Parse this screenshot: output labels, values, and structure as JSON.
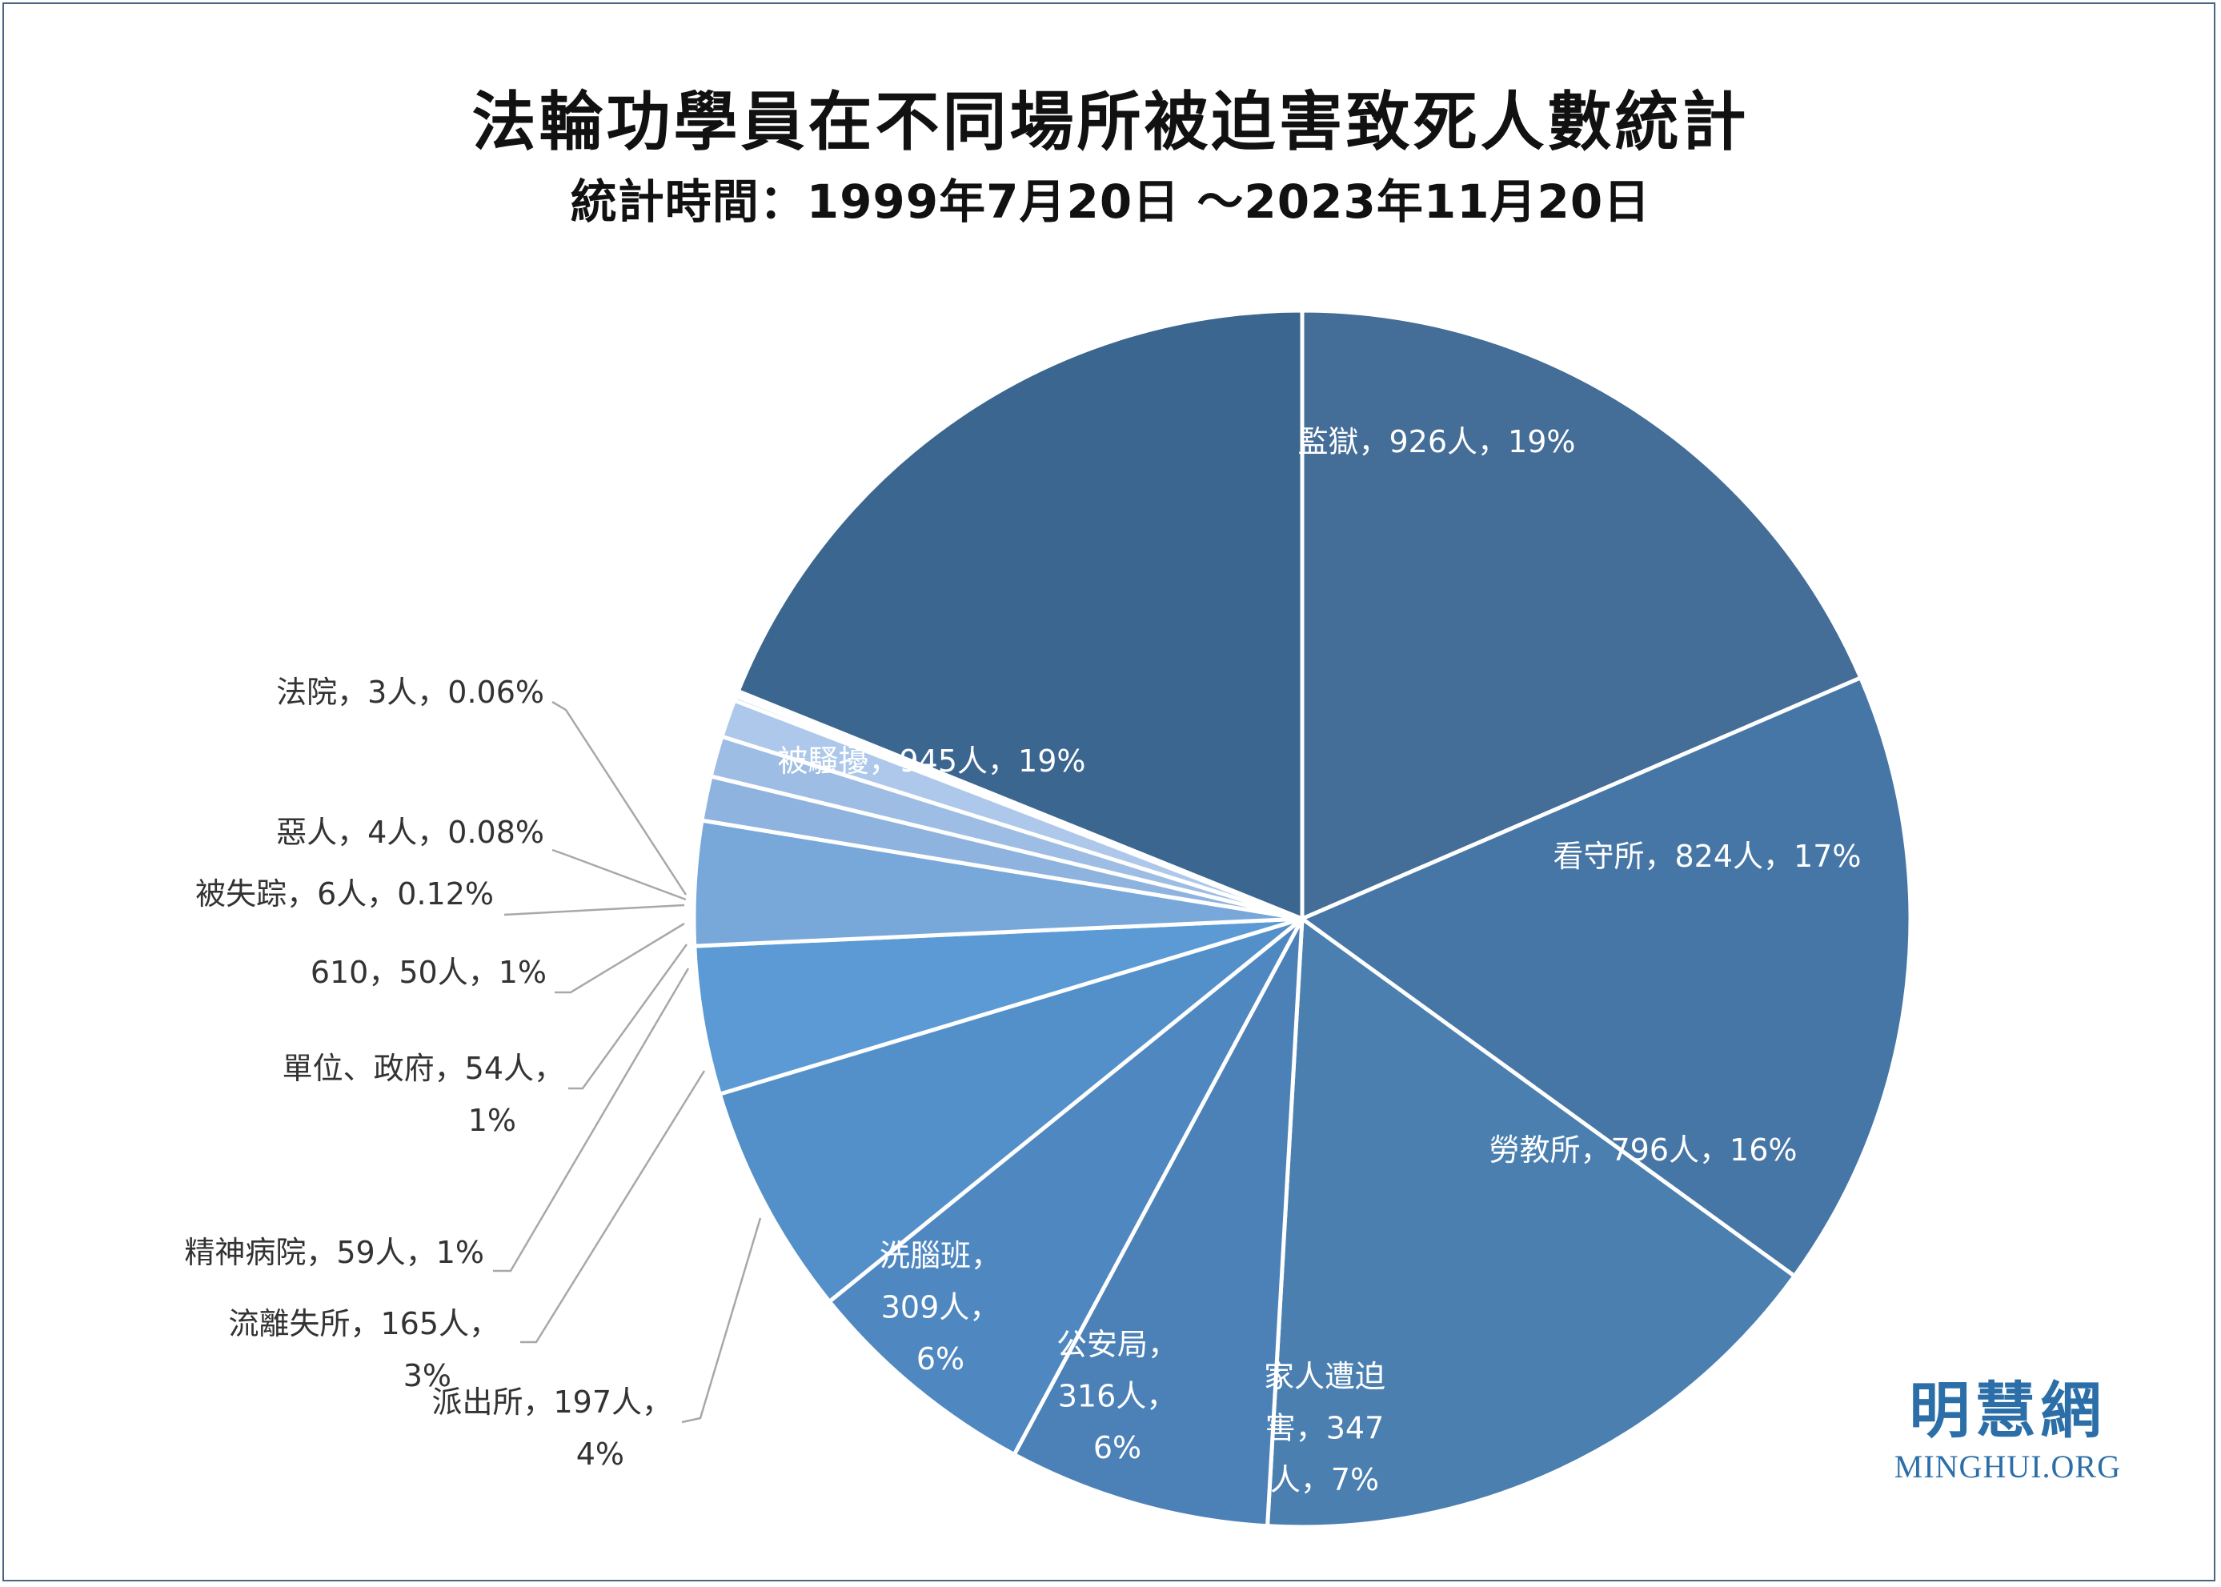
{
  "title": "法輪功學員在不同場所被迫害致死人數統計",
  "subtitle": "統計時間：1999年7月20日 ～2023年11月20日",
  "brand": {
    "cn": "明慧網",
    "en": "MINGHUI.ORG"
  },
  "colors": {
    "border": "#4a6583",
    "brand": "#2c6fa8",
    "leader": "#a8a8a8"
  },
  "chart_data": {
    "type": "pie",
    "start": "12 o'clock",
    "direction": "clockwise",
    "legend": "none",
    "slices": [
      {
        "label": "監獄",
        "value": 926,
        "percent": "19%",
        "color": "#446d97",
        "text_lines": [
          "監獄，926人，19%"
        ],
        "inside": true
      },
      {
        "label": "看守所",
        "value": 824,
        "percent": "17%",
        "color": "#4676a6",
        "text_lines": [
          "看守所，824人，17%"
        ],
        "inside": true
      },
      {
        "label": "勞教所",
        "value": 796,
        "percent": "16%",
        "color": "#4a7fb0",
        "text_lines": [
          "勞教所，796人，16%"
        ],
        "inside": true
      },
      {
        "label": "家人遭迫害",
        "value": 347,
        "percent": "7%",
        "color": "#4c81b8",
        "text_lines": [
          "家人遭迫",
          "害，347",
          "人，7%"
        ],
        "inside": true
      },
      {
        "label": "公安局",
        "value": 316,
        "percent": "6%",
        "color": "#4f88c1",
        "text_lines": [
          "公安局，",
          "316人，",
          "6%"
        ],
        "inside": true
      },
      {
        "label": "洗腦班",
        "value": 309,
        "percent": "6%",
        "color": "#5390ca",
        "text_lines": [
          "洗腦班，",
          "309人，",
          "6%"
        ],
        "inside": true
      },
      {
        "label": "派出所",
        "value": 197,
        "percent": "4%",
        "color": "#5b9ad5",
        "text_lines": [
          "派出所，197人，",
          "4%"
        ],
        "inside": false
      },
      {
        "label": "流離失所",
        "value": 165,
        "percent": "3%",
        "color": "#78a7d9",
        "text_lines": [
          "流離失所，165人，",
          "3%"
        ],
        "inside": false
      },
      {
        "label": "精神病院",
        "value": 59,
        "percent": "1%",
        "color": "#8eb3df",
        "text_lines": [
          "精神病院，59人，1%"
        ],
        "inside": false
      },
      {
        "label": "單位、政府",
        "value": 54,
        "percent": "1%",
        "color": "#9dbde4",
        "text_lines": [
          "單位、政府，54人，",
          "1%"
        ],
        "inside": false
      },
      {
        "label": "610",
        "value": 50,
        "percent": "1%",
        "color": "#adc8ea",
        "text_lines": [
          "610，50人，1%"
        ],
        "inside": false
      },
      {
        "label": "被失踪",
        "value": 6,
        "percent": "0.12%",
        "color": "#bcd3ef",
        "text_lines": [
          "被失踪，6人，0.12%"
        ],
        "inside": false
      },
      {
        "label": "惡人",
        "value": 4,
        "percent": "0.08%",
        "color": "#c7daf2",
        "text_lines": [
          "惡人，4人，0.08%"
        ],
        "inside": false
      },
      {
        "label": "法院",
        "value": 3,
        "percent": "0.06%",
        "color": "#d2e1f5",
        "text_lines": [
          "法院，3人，0.06%"
        ],
        "inside": false
      },
      {
        "label": "被騷擾",
        "value": 945,
        "percent": "19%",
        "color": "#3b6690",
        "text_lines": [
          "被騷擾，945人，19%"
        ],
        "inside": true
      }
    ]
  }
}
